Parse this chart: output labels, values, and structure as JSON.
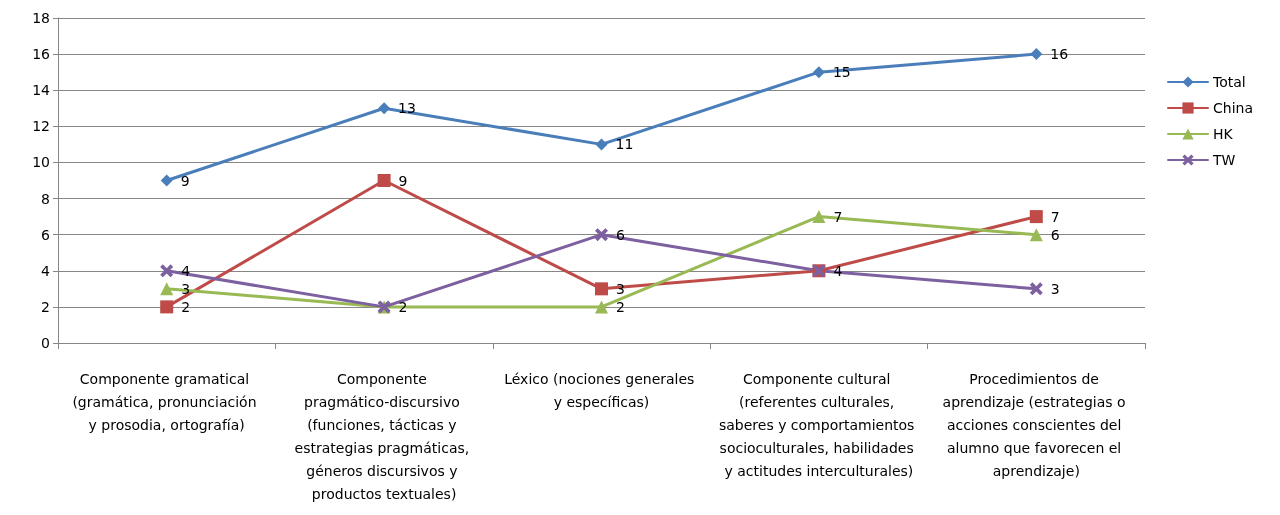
{
  "chart_data": {
    "type": "line",
    "categories": [
      "Componente gramatical (gramática, pronunciación y prosodia, ortografía)",
      "Componente pragmático-discursivo (funciones, tácticas y estrategias pragmáticas, géneros discursivos y productos textuales)",
      "Léxico (nociones generales y específicas)",
      "Componente cultural (referentes culturales, saberes y comportamientos socioculturales, habilidades y actitudes interculturales)",
      "Procedimientos de aprendizaje (estrategias o acciones conscientes del alumno que favorecen el aprendizaje)"
    ],
    "series": [
      {
        "name": "Total",
        "color": "#4a7ebb",
        "marker": "diamond",
        "values": [
          9,
          13,
          11,
          15,
          16
        ],
        "value_labels": [
          "9",
          "13",
          "11",
          "15",
          "16"
        ]
      },
      {
        "name": "China",
        "color": "#be4b48",
        "marker": "square",
        "values": [
          2,
          9,
          3,
          4,
          7
        ],
        "value_labels": [
          "2",
          "9",
          "3",
          "4",
          "7"
        ]
      },
      {
        "name": "HK",
        "color": "#98b954",
        "marker": "triangle",
        "values": [
          3,
          2,
          2,
          7,
          6
        ],
        "value_labels": [
          "3",
          "2",
          "2",
          "7",
          "6"
        ]
      },
      {
        "name": "TW",
        "color": "#7d60a0",
        "marker": "cross",
        "values": [
          4,
          2,
          6,
          4,
          3
        ],
        "value_labels": [
          "4",
          null,
          "6",
          null,
          "3"
        ]
      }
    ],
    "ylim": [
      0,
      18
    ],
    "yticks": [
      0,
      2,
      4,
      6,
      8,
      10,
      12,
      14,
      16,
      18
    ],
    "grid": "y",
    "legend": "right",
    "line_style": "solid"
  }
}
